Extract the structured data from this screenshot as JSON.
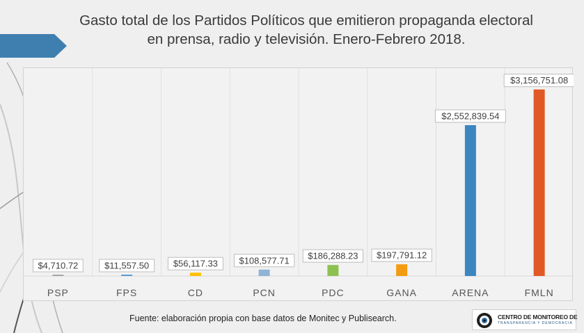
{
  "title_lines": [
    "Gasto total de los Partidos Políticos que emitieron propaganda electoral",
    "en prensa, radio y televisión. Enero-Febrero 2018."
  ],
  "source_text": "Fuente: elaboración propia con base datos de Monitec y Publisearch.",
  "logo": {
    "name": "CENTRO DE MONITOREO DE",
    "tagline": "TRANSPARENCIA Y DEMOCRACIA",
    "icon": "eye-icon"
  },
  "chart_data": {
    "type": "bar",
    "categories": [
      "PSP",
      "FPS",
      "CD",
      "PCN",
      "PDC",
      "GANA",
      "ARENA",
      "FMLN"
    ],
    "values": [
      4710.72,
      11557.5,
      56117.33,
      108577.71,
      186288.23,
      197791.12,
      2552839.54,
      3156751.08
    ],
    "data_labels": [
      "$4,710.72",
      "$11,557.50",
      "$56,117.33",
      "$108,577.71",
      "$186,288.23",
      "$197,791.12",
      "$2,552,839.54",
      "$3,156,751.08"
    ],
    "colors": [
      "#a5a5a5",
      "#5b9bd5",
      "#ffc000",
      "#8fb4d6",
      "#8cc152",
      "#f39c12",
      "#3c86c0",
      "#e15a25"
    ],
    "ylim": [
      0,
      3400000
    ],
    "grid": "vertical category separators",
    "legend": "none"
  }
}
